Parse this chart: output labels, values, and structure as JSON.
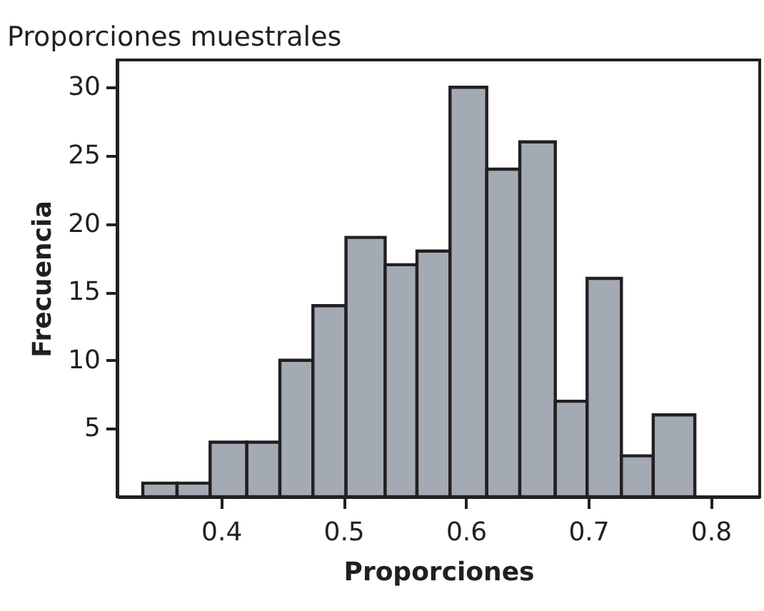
{
  "chart_data": {
    "type": "histogram",
    "title": "Proporciones muestrales",
    "xlabel": "Proporciones",
    "ylabel": "Frecuencia",
    "bins": [
      0.336,
      0.364,
      0.391,
      0.421,
      0.448,
      0.475,
      0.502,
      0.534,
      0.56,
      0.587,
      0.617,
      0.644,
      0.673,
      0.699,
      0.727,
      0.753,
      0.787
    ],
    "values": [
      1,
      1,
      4,
      4,
      10,
      14,
      19,
      17,
      18,
      30,
      24,
      26,
      7,
      16,
      3,
      6
    ],
    "color": "#a4aab3",
    "xlim": [
      0.315,
      0.84
    ],
    "xticks": [
      0.4,
      0.5,
      0.6,
      0.7,
      0.8
    ],
    "ylim": [
      0,
      32
    ],
    "yticks": [
      5,
      10,
      15,
      20,
      25,
      30
    ],
    "grid": false
  }
}
